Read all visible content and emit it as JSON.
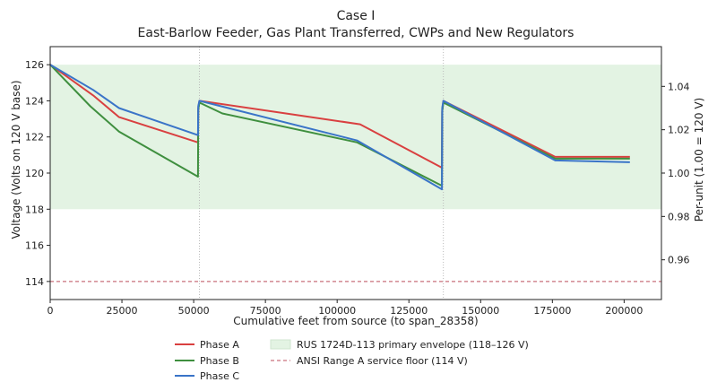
{
  "chart_data": {
    "type": "line",
    "title": "Case I",
    "subtitle": "East-Barlow Feeder, Gas Plant Transferred, CWPs and New Regulators",
    "xlabel": "Cumulative feet from source (to span_28358)",
    "ylabel": "Voltage (Volts on 120 V base)",
    "y2label": "Per-unit (1.00 = 120 V)",
    "xlim": [
      0,
      213000
    ],
    "ylim": [
      113,
      127
    ],
    "y2lim": [
      0.941667,
      1.058333
    ],
    "x_ticks": [
      0,
      25000,
      50000,
      75000,
      100000,
      125000,
      150000,
      175000,
      200000
    ],
    "x_tick_labels": [
      "0",
      "25000",
      "50000",
      "75000",
      "100000",
      "125000",
      "150000",
      "175000",
      "200000"
    ],
    "y_ticks": [
      114,
      116,
      118,
      120,
      122,
      124,
      126
    ],
    "y_tick_labels": [
      "114",
      "116",
      "118",
      "120",
      "122",
      "124",
      "126"
    ],
    "y2_ticks": [
      0.96,
      0.98,
      1.0,
      1.02,
      1.04
    ],
    "y2_tick_labels": [
      "0.96",
      "0.98",
      "1.00",
      "1.02",
      "1.04"
    ],
    "regulator_lines_x": [
      52000,
      137000
    ],
    "band": {
      "name": "RUS 1724D-113 primary envelope (118–126 V)",
      "y0": 118,
      "y1": 126,
      "color": "#e3f3e3"
    },
    "floor_line": {
      "name": "ANSI Range A service floor (114 V)",
      "y": 114,
      "color": "#c9707c"
    },
    "series": [
      {
        "name": "Phase A",
        "color": "#d94040",
        "x": [
          0,
          15000,
          24000,
          51500,
          51600,
          52000,
          108000,
          136500,
          136600,
          137000,
          176000,
          202000
        ],
        "y": [
          126.0,
          124.3,
          123.1,
          121.7,
          123.6,
          124.0,
          122.7,
          120.3,
          123.5,
          124.0,
          120.9,
          120.9
        ]
      },
      {
        "name": "Phase B",
        "color": "#3f8f3f",
        "x": [
          0,
          14000,
          24000,
          51500,
          51600,
          52000,
          60000,
          107000,
          136500,
          136600,
          137000,
          176000,
          202000
        ],
        "y": [
          126.0,
          123.7,
          122.3,
          119.8,
          123.5,
          123.9,
          123.3,
          121.7,
          119.3,
          123.4,
          123.9,
          120.8,
          120.8
        ]
      },
      {
        "name": "Phase C",
        "color": "#3a74c8",
        "x": [
          0,
          15000,
          24000,
          51500,
          51600,
          52000,
          107000,
          136500,
          136600,
          137000,
          176000,
          202000
        ],
        "y": [
          126.0,
          124.6,
          123.6,
          122.1,
          123.7,
          124.0,
          121.8,
          119.1,
          123.6,
          124.0,
          120.7,
          120.6
        ]
      }
    ],
    "legend_position": "bottom"
  }
}
